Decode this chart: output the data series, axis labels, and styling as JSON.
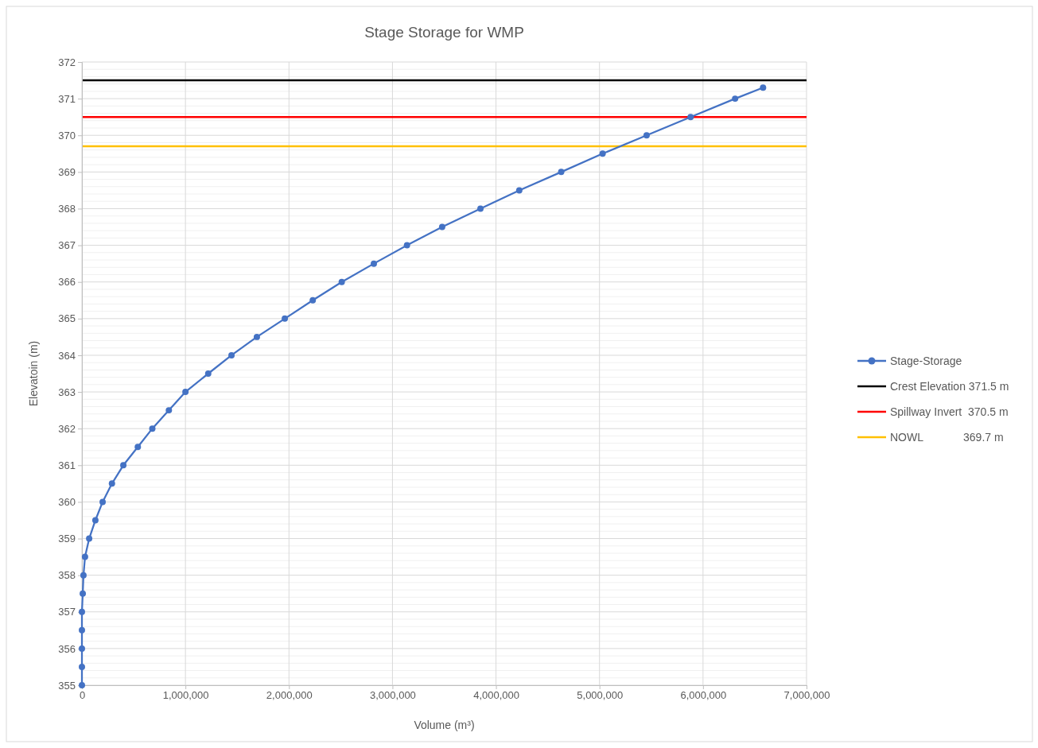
{
  "chart_data": {
    "type": "line",
    "title": "Stage Storage for WMP",
    "xlabel": "Volume (m³)",
    "ylabel": "Elevatoin (m)",
    "xlim": [
      0,
      7000000
    ],
    "ylim": [
      355,
      372
    ],
    "xticks": [
      0,
      {
        "value": 1000000,
        "label": "1,000,000"
      },
      {
        "value": 2000000,
        "label": "2,000,000"
      },
      {
        "value": 3000000,
        "label": "3,000,000"
      },
      {
        "value": 4000000,
        "label": "4,000,000"
      },
      {
        "value": 5000000,
        "label": "5,000,000"
      },
      {
        "value": 6000000,
        "label": "6,000,000"
      },
      {
        "value": 7000000,
        "label": "7,000,000"
      }
    ],
    "yticks": [
      355,
      356,
      357,
      358,
      359,
      360,
      361,
      362,
      363,
      364,
      365,
      366,
      367,
      368,
      369,
      370,
      371,
      372
    ],
    "grid": true,
    "legend": "right",
    "marker": "circle",
    "line_style": "solid",
    "series": [
      {
        "name": "Stage-Storage",
        "color": "#4472c4",
        "x": [
          0,
          0,
          0,
          0,
          0,
          8000,
          15000,
          30000,
          70000,
          130000,
          200000,
          290000,
          400000,
          540000,
          680000,
          840000,
          1000000,
          1220000,
          1445000,
          1690000,
          1960000,
          2230000,
          2510000,
          2820000,
          3140000,
          3480000,
          3850000,
          4225000,
          4630000,
          5030000,
          5455000,
          5880000,
          6310000,
          6580000
        ],
        "values": [
          355,
          355.5,
          356,
          356.5,
          357,
          357.5,
          358,
          358.5,
          359,
          359.5,
          360,
          360.5,
          361,
          361.5,
          362,
          362.5,
          363,
          363.5,
          364,
          364.5,
          365,
          365.5,
          366,
          366.5,
          367,
          367.5,
          368,
          368.5,
          369,
          369.5,
          370,
          370.5,
          371,
          371.3
        ]
      }
    ],
    "ref_lines": [
      {
        "axis": "y",
        "value": 371.5,
        "label": "Crest Elevation 371.5 m",
        "color": "#000000"
      },
      {
        "axis": "y",
        "value": 370.5,
        "label": "Spillway Invert  370.5 m",
        "color": "#ff0000"
      },
      {
        "axis": "y",
        "value": 369.7,
        "label": "NOWL             369.7 m",
        "color": "#ffc000"
      }
    ]
  }
}
